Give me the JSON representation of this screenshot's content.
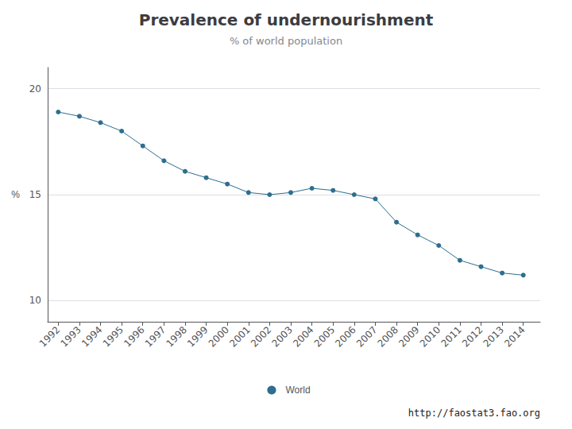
{
  "chart_data": {
    "type": "line",
    "title": "Prevalence of undernourishment",
    "subtitle": "% of world population",
    "ylabel": "%",
    "annotations": [
      "http://faostat3.fao.org"
    ],
    "x": [
      1992,
      1993,
      1994,
      1995,
      1996,
      1997,
      1998,
      1999,
      2000,
      2001,
      2002,
      2003,
      2004,
      2005,
      2006,
      2007,
      2008,
      2009,
      2010,
      2011,
      2012,
      2013,
      2014
    ],
    "series": [
      {
        "name": "World",
        "color": "#2E6E8E",
        "marker": "circle",
        "values": [
          18.9,
          18.7,
          18.4,
          18.0,
          17.3,
          16.6,
          16.1,
          15.8,
          15.5,
          15.1,
          15.0,
          15.1,
          15.3,
          15.2,
          15.0,
          14.8,
          13.7,
          13.1,
          12.6,
          11.9,
          11.6,
          11.3,
          11.2
        ]
      }
    ],
    "xlim": [
      1991.5,
      2014.8
    ],
    "xticks": [
      1992,
      1993,
      1994,
      1995,
      1996,
      1997,
      1998,
      1999,
      2000,
      2001,
      2002,
      2003,
      2004,
      2005,
      2006,
      2007,
      2008,
      2009,
      2010,
      2011,
      2012,
      2013,
      2014
    ],
    "ylim": [
      9,
      21
    ],
    "yticks": [
      10,
      15,
      20
    ],
    "grid": true,
    "legend": "bottom"
  }
}
